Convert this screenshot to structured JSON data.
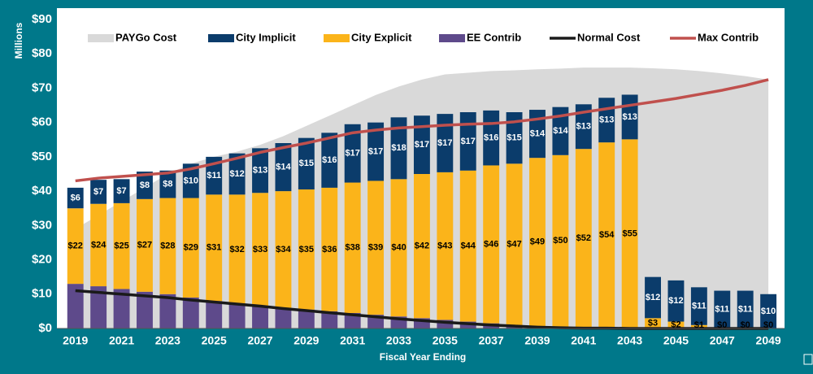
{
  "chart_data": {
    "type": "bar",
    "x_label": "Fiscal Year Ending",
    "y_label": "Millions",
    "x": [
      2019,
      2020,
      2021,
      2022,
      2023,
      2024,
      2025,
      2026,
      2027,
      2028,
      2029,
      2030,
      2031,
      2032,
      2033,
      2034,
      2035,
      2036,
      2037,
      2038,
      2039,
      2040,
      2041,
      2042,
      2043,
      2044,
      2045,
      2046,
      2047,
      2048,
      2049
    ],
    "xlim": [
      2018.2,
      2049.7
    ],
    "xticks": [
      2019,
      2021,
      2023,
      2025,
      2027,
      2029,
      2031,
      2033,
      2035,
      2037,
      2039,
      2041,
      2043,
      2045,
      2047,
      2049
    ],
    "ylim": [
      0,
      90
    ],
    "yticks": [
      {
        "value": 0,
        "label": "$0"
      },
      {
        "value": 10,
        "label": "$10"
      },
      {
        "value": 20,
        "label": "$20"
      },
      {
        "value": 30,
        "label": "$30"
      },
      {
        "value": 40,
        "label": "$40"
      },
      {
        "value": 50,
        "label": "$50"
      },
      {
        "value": 60,
        "label": "$60"
      },
      {
        "value": 70,
        "label": "$70"
      },
      {
        "value": 80,
        "label": "$80"
      },
      {
        "value": 90,
        "label": "$90"
      }
    ],
    "grid": false,
    "legend": "top",
    "series": [
      {
        "name": "PAYGo Cost",
        "type": "area",
        "color": "#d9d9d9",
        "values": [
          29,
          33,
          37,
          41,
          45,
          48,
          50,
          51.5,
          53.5,
          56,
          59,
          62,
          65,
          68,
          70.5,
          72.5,
          74,
          74.5,
          75,
          75.2,
          75.5,
          75.7,
          76,
          76,
          76,
          75.8,
          75.5,
          75,
          74.3,
          73.5,
          72.5
        ]
      },
      {
        "name": "City Implicit",
        "type": "bar",
        "color": "#0b3c6b",
        "label_color": "#ffffff",
        "values": [
          6,
          7,
          7,
          8,
          8,
          10,
          11,
          12,
          13,
          14,
          15,
          16,
          17,
          17,
          18,
          17,
          17,
          17,
          16,
          15,
          14,
          14,
          13,
          13,
          13,
          12,
          12,
          11,
          11,
          11,
          10
        ],
        "value_labels": [
          "$6",
          "$7",
          "$7",
          "$8",
          "$8",
          "$10",
          "$11",
          "$12",
          "$13",
          "$14",
          "$15",
          "$16",
          "$17",
          "$17",
          "$18",
          "$17",
          "$17",
          "$17",
          "$16",
          "$15",
          "$14",
          "$14",
          "$13",
          "$13",
          "$13",
          "$12",
          "$12",
          "$11",
          "$11",
          "$11",
          "$10"
        ]
      },
      {
        "name": "City Explicit",
        "type": "bar",
        "color": "#fbb41a",
        "label_color": "#000000",
        "values": [
          22,
          24,
          25,
          27,
          28,
          29,
          31,
          32,
          33,
          34,
          35,
          36,
          38,
          39,
          40,
          42,
          43,
          44,
          46,
          47,
          49,
          50,
          52,
          54,
          55,
          3,
          2,
          1,
          0,
          0,
          0
        ],
        "value_labels": [
          "$22",
          "$24",
          "$25",
          "$27",
          "$28",
          "$29",
          "$31",
          "$32",
          "$33",
          "$34",
          "$35",
          "$36",
          "$38",
          "$39",
          "$40",
          "$42",
          "$43",
          "$44",
          "$46",
          "$47",
          "$49",
          "$50",
          "$52",
          "$54",
          "$55",
          "$3",
          "$2",
          "$1",
          "$0",
          "$0",
          "$0"
        ]
      },
      {
        "name": "EE Contrib",
        "type": "bar",
        "color": "#5e4a8b",
        "values": [
          13,
          12.3,
          11.5,
          10.7,
          10,
          9,
          8,
          7,
          6.5,
          6,
          5.5,
          5,
          4.5,
          4,
          3.5,
          3,
          2.5,
          2,
          1.5,
          1,
          0.7,
          0.5,
          0.3,
          0.2,
          0.1,
          0,
          0,
          0,
          0,
          0,
          0
        ]
      },
      {
        "name": "Normal Cost",
        "type": "line",
        "color": "#1a1a1a",
        "values": [
          11,
          10.5,
          10,
          9.5,
          9,
          8.3,
          7.7,
          7.1,
          6.5,
          5.8,
          5.2,
          4.6,
          4,
          3.4,
          2.8,
          2.3,
          1.8,
          1.4,
          1,
          0.7,
          0.4,
          0.2,
          0.1,
          0.1,
          0,
          0,
          0,
          0,
          0,
          0,
          0
        ]
      },
      {
        "name": "Max Contrib",
        "type": "line",
        "color": "#c0504d",
        "values": [
          43,
          43.8,
          44.3,
          44.8,
          45.3,
          46.5,
          48,
          49.6,
          51.3,
          52.7,
          54,
          55.5,
          57,
          57.8,
          58.4,
          58.8,
          59.2,
          59.5,
          59.7,
          60.2,
          61,
          61.9,
          63,
          64,
          65,
          66,
          67,
          68.2,
          69.4,
          70.8,
          72.5
        ]
      }
    ]
  }
}
